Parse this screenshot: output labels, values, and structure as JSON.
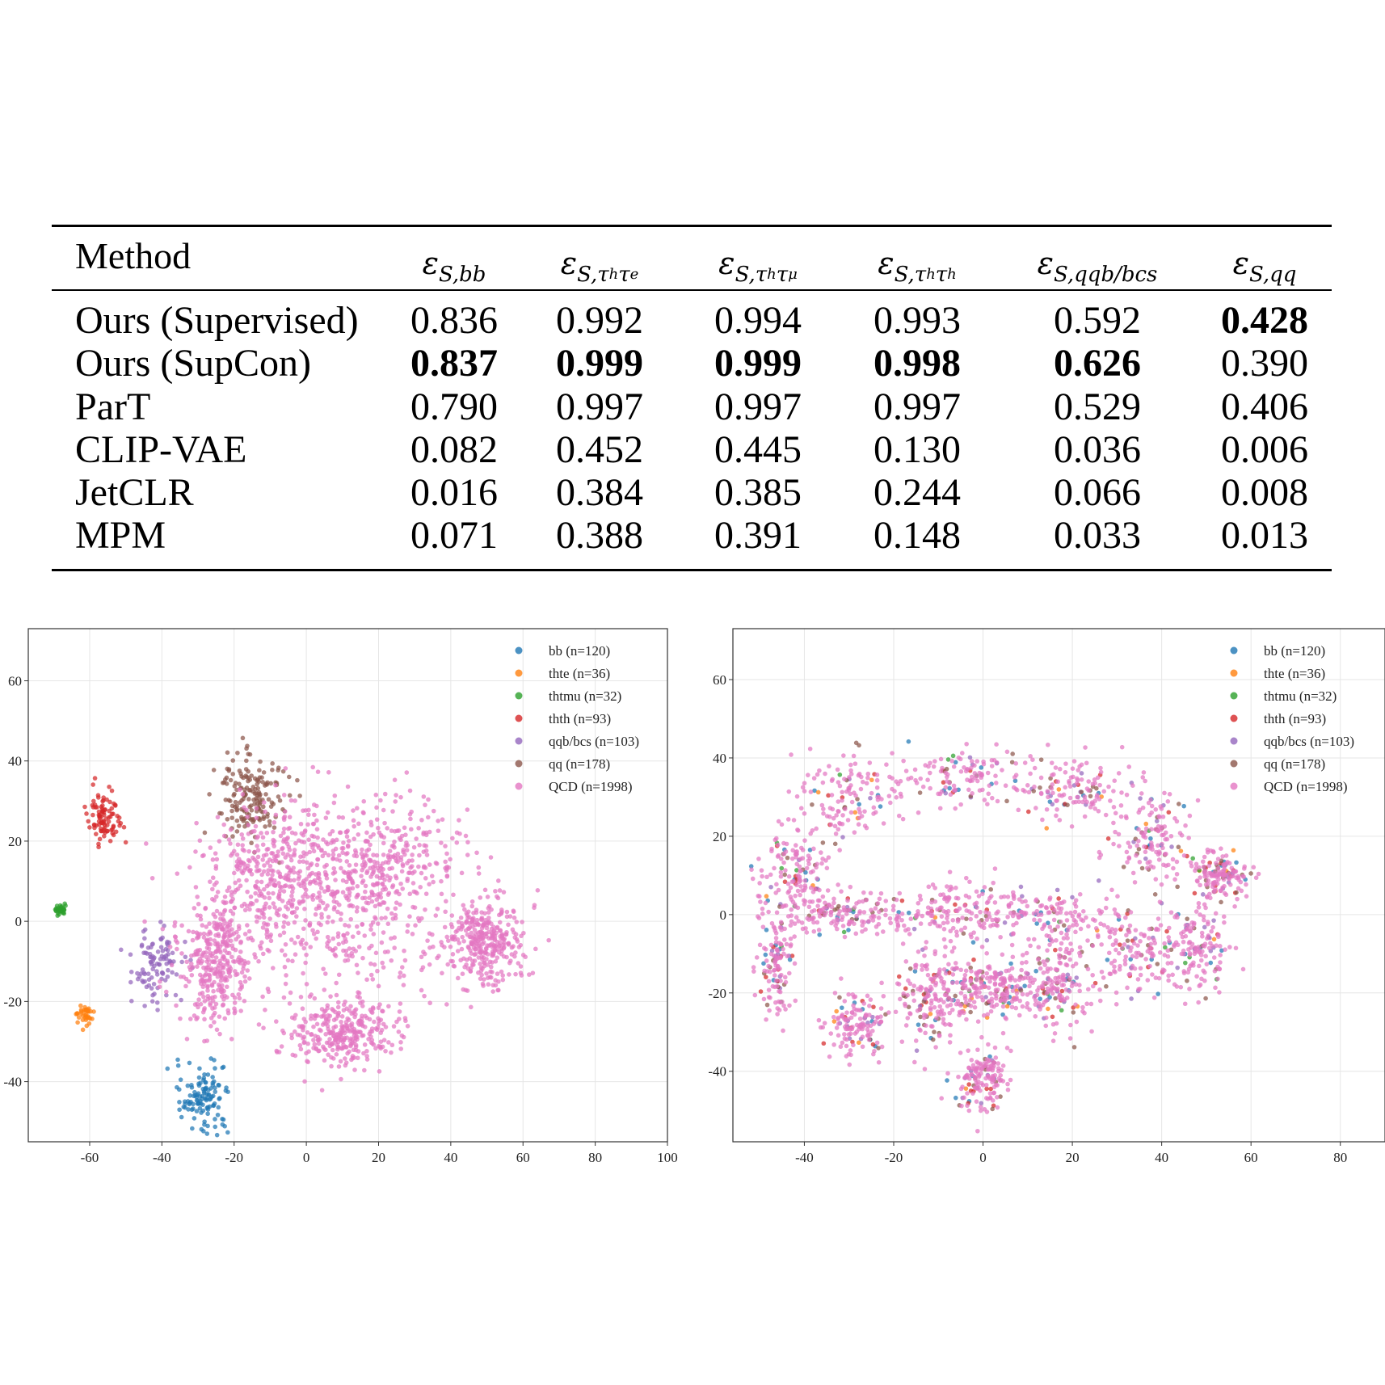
{
  "table": {
    "header_method": "Method",
    "columns": [
      {
        "sym": "ε",
        "sub": "S,bb",
        "subsub": ""
      },
      {
        "sym": "ε",
        "sub": "S,τ",
        "subsub": "h",
        "sub2": "τ",
        "subsub2": "e"
      },
      {
        "sym": "ε",
        "sub": "S,τ",
        "subsub": "h",
        "sub2": "τ",
        "subsub2": "μ"
      },
      {
        "sym": "ε",
        "sub": "S,τ",
        "subsub": "h",
        "sub2": "τ",
        "subsub2": "h"
      },
      {
        "sym": "ε",
        "sub": "S,qqb/bcs",
        "subsub": ""
      },
      {
        "sym": "ε",
        "sub": "S,qq",
        "subsub": ""
      }
    ],
    "rows": [
      {
        "method": "Ours (Supervised)",
        "values": [
          "0.836",
          "0.992",
          "0.994",
          "0.993",
          "0.592",
          "0.428"
        ],
        "bold": [
          false,
          false,
          false,
          false,
          false,
          true
        ]
      },
      {
        "method": "Ours (SupCon)",
        "values": [
          "0.837",
          "0.999",
          "0.999",
          "0.998",
          "0.626",
          "0.390"
        ],
        "bold": [
          true,
          true,
          true,
          true,
          true,
          false
        ]
      },
      {
        "method": "ParT",
        "values": [
          "0.790",
          "0.997",
          "0.997",
          "0.997",
          "0.529",
          "0.406"
        ],
        "bold": [
          false,
          false,
          false,
          false,
          false,
          false
        ]
      },
      {
        "method": "CLIP-VAE",
        "values": [
          "0.082",
          "0.452",
          "0.445",
          "0.130",
          "0.036",
          "0.006"
        ],
        "bold": [
          false,
          false,
          false,
          false,
          false,
          false
        ]
      },
      {
        "method": "JetCLR",
        "values": [
          "0.016",
          "0.384",
          "0.385",
          "0.244",
          "0.066",
          "0.008"
        ],
        "bold": [
          false,
          false,
          false,
          false,
          false,
          false
        ]
      },
      {
        "method": "MPM",
        "values": [
          "0.071",
          "0.388",
          "0.391",
          "0.148",
          "0.033",
          "0.013"
        ],
        "bold": [
          false,
          false,
          false,
          false,
          false,
          false
        ]
      }
    ]
  },
  "chart_data": [
    {
      "type": "scatter",
      "title": "",
      "xlabel": "",
      "ylabel": "",
      "xlim": [
        -77,
        100
      ],
      "ylim": [
        -55,
        73
      ],
      "xticks": [
        -60,
        -40,
        -20,
        0,
        20,
        40,
        60,
        80,
        100
      ],
      "yticks": [
        -40,
        -20,
        0,
        20,
        40,
        60
      ],
      "grid": true,
      "legend_position": "top-right",
      "series": [
        {
          "name": "bb (n=120)",
          "color": "#1f77b4",
          "n": 120,
          "clusters": [
            [
              -28,
              -44,
              3.5,
              4.5
            ]
          ]
        },
        {
          "name": "thte (n=36)",
          "color": "#ff7f0e",
          "n": 36,
          "clusters": [
            [
              -61,
              -23,
              1.2,
              1.2
            ]
          ]
        },
        {
          "name": "thtmu (n=32)",
          "color": "#2ca02c",
          "n": 32,
          "clusters": [
            [
              -68,
              3,
              0.9,
              0.8
            ]
          ]
        },
        {
          "name": "thth (n=93)",
          "color": "#d62728",
          "n": 93,
          "clusters": [
            [
              -56,
              26,
              2.0,
              3.5
            ]
          ]
        },
        {
          "name": "qqb/bcs (n=103)",
          "color": "#9467bd",
          "n": 103,
          "clusters": [
            [
              -41,
              -11,
              3.5,
              4.5
            ]
          ]
        },
        {
          "name": "qq (n=178)",
          "color": "#8c564b",
          "n": 178,
          "clusters": [
            [
              -15,
              32,
              5.0,
              6.0
            ]
          ]
        },
        {
          "name": "QCD (n=1998)",
          "color": "#e377c2",
          "n": 1998,
          "clusters": [
            [
              10,
              0,
              18,
              12
            ],
            [
              -8,
              12,
              10,
              10
            ],
            [
              50,
              -5,
              5,
              5
            ],
            [
              10,
              -28,
              8,
              4
            ],
            [
              20,
              15,
              12,
              8
            ],
            [
              -25,
              -10,
              5,
              8
            ]
          ]
        }
      ]
    },
    {
      "type": "scatter",
      "title": "",
      "xlabel": "",
      "ylabel": "",
      "xlim": [
        -56,
        90
      ],
      "ylim": [
        -58,
        73
      ],
      "xticks": [
        -40,
        -20,
        0,
        20,
        40,
        60,
        80
      ],
      "yticks": [
        -40,
        -20,
        0,
        20,
        40,
        60
      ],
      "grid": true,
      "legend_position": "top-right",
      "series": [
        {
          "name": "bb (n=120)",
          "color": "#1f77b4",
          "n": 120,
          "clusters": []
        },
        {
          "name": "thte (n=36)",
          "color": "#ff7f0e",
          "n": 36,
          "clusters": []
        },
        {
          "name": "thtmu (n=32)",
          "color": "#2ca02c",
          "n": 32,
          "clusters": []
        },
        {
          "name": "thth (n=93)",
          "color": "#d62728",
          "n": 93,
          "clusters": []
        },
        {
          "name": "qqb/bcs (n=103)",
          "color": "#9467bd",
          "n": 103,
          "clusters": []
        },
        {
          "name": "qq (n=178)",
          "color": "#8c564b",
          "n": 178,
          "clusters": []
        },
        {
          "name": "QCD (n=1998)",
          "color": "#e377c2",
          "n": 1998,
          "clusters": [
            [
              -30,
              30,
              6,
              6
            ],
            [
              -5,
              35,
              8,
              4
            ],
            [
              20,
              32,
              6,
              5
            ],
            [
              38,
              20,
              5,
              6
            ],
            [
              53,
              10,
              3,
              3
            ],
            [
              -42,
              10,
              4,
              6
            ],
            [
              -46,
              -12,
              2,
              8
            ],
            [
              -30,
              0,
              8,
              3
            ],
            [
              -5,
              0,
              6,
              4
            ],
            [
              15,
              0,
              8,
              4
            ],
            [
              35,
              -10,
              5,
              6
            ],
            [
              48,
              -8,
              4,
              6
            ],
            [
              -28,
              -28,
              4,
              4
            ],
            [
              -12,
              -22,
              4,
              7
            ],
            [
              6,
              -18,
              6,
              4
            ],
            [
              18,
              -18,
              4,
              6
            ],
            [
              0,
              -42,
              3,
              4
            ],
            [
              -2,
              -20,
              6,
              4
            ]
          ]
        }
      ]
    }
  ]
}
